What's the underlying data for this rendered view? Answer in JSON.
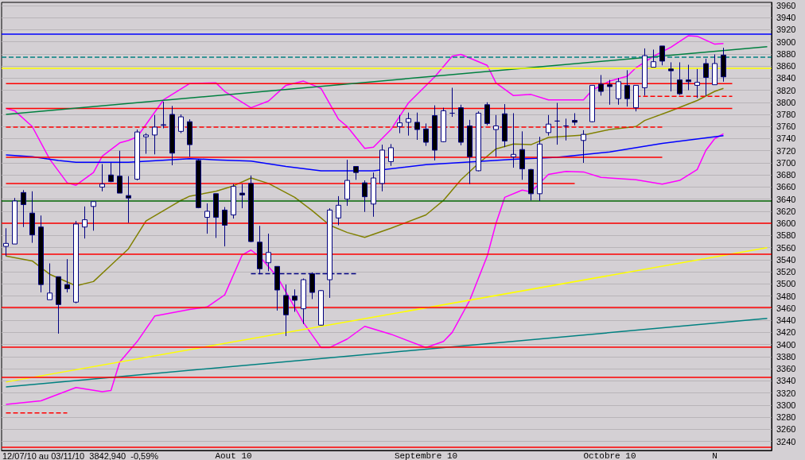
{
  "chart_data": {
    "type": "candlestick",
    "categories": [
      null,
      null,
      null,
      null,
      null,
      null,
      null,
      null,
      null,
      null,
      null,
      null,
      null,
      null,
      null,
      null,
      null,
      null,
      null,
      null,
      null,
      null,
      null,
      null,
      null,
      null,
      "Aout 10",
      null,
      null,
      null,
      null,
      null,
      null,
      null,
      null,
      null,
      null,
      null,
      null,
      null,
      null,
      null,
      null,
      null,
      null,
      null,
      null,
      null,
      "Septembre 10",
      null,
      null,
      null,
      null,
      null,
      null,
      null,
      null,
      null,
      null,
      null,
      null,
      null,
      null,
      null,
      null,
      null,
      null,
      null,
      null,
      "Octobre 10",
      null,
      null,
      null,
      null,
      null,
      null,
      null,
      null,
      null,
      null,
      null,
      "N",
      null,
      null,
      null,
      null,
      null,
      null
    ],
    "ylim": [
      3225,
      3965
    ],
    "yticks": [
      3240,
      3260,
      3280,
      3300,
      3320,
      3340,
      3360,
      3380,
      3400,
      3420,
      3440,
      3460,
      3480,
      3500,
      3520,
      3540,
      3560,
      3580,
      3600,
      3620,
      3640,
      3660,
      3680,
      3700,
      3720,
      3740,
      3760,
      3780,
      3800,
      3820,
      3840,
      3860,
      3880,
      3900,
      3920,
      3940,
      3960
    ],
    "grid": "y",
    "annotations": [
      "12/07/10 au 03/11/10  3842,940  -0,59%"
    ],
    "ref_lines": [
      {
        "axis": "y",
        "value": 3913,
        "color": "#0000ff"
      },
      {
        "axis": "y",
        "value": 3875,
        "color": "#008080",
        "line_style": "dashed"
      },
      {
        "axis": "y",
        "value": 3856,
        "color": "#ffff00"
      },
      {
        "axis": "y",
        "value": 3637,
        "color": "#006400"
      },
      {
        "axis": "y",
        "value": 3600,
        "color": "#ff0000"
      },
      {
        "axis": "y",
        "value": 3549,
        "color": "#ff0000"
      },
      {
        "axis": "y",
        "value": 3462,
        "color": "#ff0000"
      },
      {
        "axis": "y",
        "value": 3396,
        "color": "#ff0000"
      },
      {
        "axis": "y",
        "value": 3346,
        "color": "#ff0000"
      },
      {
        "axis": "y",
        "value": 3231,
        "color": "#ff0000"
      }
    ],
    "series": [
      {
        "type": "line",
        "color": "#ff00ff",
        "values": [
          3790,
          3786,
          null,
          3760,
          null,
          3706,
          null,
          3667,
          3663,
          null,
          3684,
          3711,
          null,
          3733,
          3737,
          3743,
          null,
          null,
          3804,
          null,
          null,
          3831,
          null,
          null,
          3832,
          3818,
          null,
          null,
          3791,
          null,
          3802,
          null,
          3828,
          null,
          3835,
          null,
          3823,
          null,
          3772,
          3760,
          null,
          3724,
          3726,
          null,
          3755,
          null,
          3799,
          null,
          null,
          3842,
          null,
          3876,
          3879,
          null,
          null,
          3861,
          3832,
          null,
          3811,
          null,
          3813,
          null,
          3804,
          null,
          null,
          null,
          3804,
          3820,
          null,
          3835,
          null,
          3843,
          3857,
          null,
          3876,
          null,
          3891,
          null,
          3910,
          3909,
          null,
          3896,
          3897,
          null,
          null,
          null,
          null,
          null
        ]
      },
      {
        "type": "line",
        "color": "#ff00ff",
        "values": [
          3301,
          null,
          null,
          null,
          3307,
          null,
          null,
          null,
          3329,
          null,
          null,
          3322,
          3324,
          3371,
          null,
          3405,
          null,
          3447,
          null,
          null,
          null,
          3458,
          null,
          3462,
          null,
          3482,
          null,
          3548,
          3556,
          3545,
          null,
          3512,
          null,
          null,
          3436,
          null,
          3395,
          3395,
          null,
          3409,
          null,
          3430,
          null,
          null,
          3417,
          null,
          null,
          null,
          3395,
          null,
          3405,
          3420,
          null,
          3473,
          null,
          3546,
          3600,
          3643,
          null,
          3655,
          3652,
          null,
          3681,
          null,
          3686,
          null,
          3685,
          null,
          3676,
          null,
          null,
          null,
          3672,
          null,
          null,
          3665,
          null,
          3671,
          null,
          3689,
          3721,
          3740,
          3748,
          null,
          null,
          null,
          null,
          null
        ]
      },
      {
        "type": "line",
        "color": "#808000",
        "values": [
          3546,
          null,
          null,
          3538,
          null,
          3516,
          null,
          null,
          3497,
          null,
          3504,
          null,
          3531,
          null,
          3558,
          null,
          3604,
          null,
          null,
          null,
          3638,
          3645,
          null,
          null,
          3653,
          null,
          3662,
          null,
          3675,
          null,
          3666,
          null,
          null,
          3643,
          null,
          3621,
          null,
          3597,
          null,
          3585,
          null,
          3577,
          null,
          null,
          3592,
          null,
          null,
          null,
          3614,
          null,
          3638,
          null,
          3672,
          null,
          3699,
          null,
          3723,
          null,
          3731,
          null,
          3730,
          null,
          3742,
          null,
          null,
          null,
          3746,
          null,
          null,
          3755,
          null,
          null,
          3760,
          3770,
          null,
          null,
          3786,
          null,
          null,
          3803,
          null,
          3818,
          3823,
          null,
          null,
          null,
          null,
          null
        ]
      },
      {
        "type": "line",
        "color": "#0000ff",
        "values": [
          3713,
          null,
          null,
          3710,
          null,
          null,
          3704,
          null,
          3701,
          null,
          null,
          null,
          null,
          null,
          3701,
          null,
          null,
          null,
          null,
          null,
          null,
          3707,
          null,
          null,
          3705,
          null,
          null,
          null,
          3703,
          null,
          null,
          null,
          3694,
          null,
          null,
          null,
          3687,
          null,
          null,
          null,
          null,
          null,
          3687,
          null,
          null,
          null,
          null,
          null,
          3697,
          null,
          null,
          null,
          null,
          null,
          null,
          null,
          null,
          null,
          3706,
          null,
          null,
          null,
          null,
          3709,
          null,
          null,
          null,
          null,
          null,
          3718,
          null,
          null,
          null,
          null,
          null,
          3732,
          null,
          null,
          null,
          null,
          null,
          null,
          3745,
          null,
          null,
          null,
          null,
          null
        ]
      },
      {
        "type": "line",
        "color": "#ff0000",
        "values": [
          3831,
          null,
          null,
          null,
          null,
          null,
          null,
          null,
          null,
          null,
          null,
          null,
          null,
          null,
          null,
          null,
          null,
          null,
          null,
          null,
          null,
          null,
          null,
          null,
          null,
          null,
          null,
          null,
          null,
          null,
          null,
          null,
          null,
          null,
          null,
          null,
          null,
          null,
          null,
          null,
          null,
          null,
          null,
          null,
          null,
          null,
          null,
          null,
          null,
          null,
          null,
          null,
          null,
          null,
          null,
          null,
          null,
          null,
          null,
          null,
          null,
          null,
          null,
          null,
          null,
          null,
          null,
          null,
          null,
          null,
          null,
          null,
          null,
          null,
          null,
          null,
          null,
          null,
          null,
          null,
          null,
          null,
          null,
          3831,
          null,
          null,
          null,
          null
        ]
      },
      {
        "type": "line",
        "color": "#ff0000",
        "values": [
          3790,
          null,
          null,
          null,
          null,
          null,
          null,
          null,
          null,
          null,
          null,
          null,
          null,
          null,
          null,
          null,
          null,
          null,
          null,
          null,
          null,
          null,
          null,
          null,
          null,
          null,
          null,
          null,
          null,
          null,
          null,
          null,
          null,
          null,
          null,
          null,
          null,
          null,
          null,
          null,
          null,
          null,
          null,
          null,
          null,
          null,
          null,
          null,
          null,
          null,
          null,
          null,
          null,
          null,
          null,
          null,
          null,
          null,
          null,
          null,
          null,
          null,
          null,
          null,
          null,
          null,
          null,
          null,
          null,
          null,
          null,
          null,
          null,
          null,
          null,
          null,
          null,
          null,
          null,
          null,
          null,
          null,
          null,
          3790,
          null,
          null,
          null,
          null
        ]
      },
      {
        "type": "line",
        "color": "#ff0000",
        "line_style": "dashed",
        "values": [
          null,
          null,
          null,
          null,
          null,
          null,
          null,
          null,
          null,
          null,
          null,
          null,
          null,
          null,
          null,
          null,
          null,
          null,
          null,
          null,
          null,
          null,
          null,
          null,
          null,
          null,
          null,
          null,
          null,
          null,
          null,
          null,
          null,
          null,
          null,
          null,
          null,
          null,
          null,
          null,
          null,
          null,
          null,
          null,
          null,
          null,
          null,
          null,
          null,
          null,
          null,
          null,
          null,
          null,
          null,
          null,
          null,
          null,
          null,
          null,
          null,
          null,
          null,
          null,
          null,
          null,
          null,
          null,
          null,
          null,
          null,
          null,
          3810,
          null,
          null,
          null,
          null,
          null,
          null,
          null,
          null,
          null,
          null,
          3810,
          null,
          null,
          null,
          null
        ]
      },
      {
        "type": "line",
        "color": "#ff0000",
        "line_style": "dashed",
        "values": [
          3759,
          null,
          null,
          null,
          null,
          null,
          null,
          null,
          null,
          null,
          null,
          null,
          null,
          null,
          null,
          null,
          null,
          null,
          null,
          null,
          null,
          null,
          null,
          null,
          null,
          null,
          null,
          null,
          null,
          null,
          null,
          null,
          null,
          null,
          null,
          null,
          null,
          null,
          null,
          null,
          null,
          null,
          null,
          null,
          null,
          null,
          null,
          null,
          null,
          null,
          null,
          null,
          null,
          null,
          null,
          null,
          null,
          null,
          null,
          null,
          null,
          null,
          null,
          null,
          null,
          null,
          null,
          null,
          null,
          null,
          null,
          null,
          null,
          null,
          null,
          3759,
          null,
          null,
          null,
          null,
          null,
          null,
          null,
          null,
          null,
          null,
          null,
          null
        ]
      },
      {
        "type": "line",
        "color": "#ff0000",
        "values": [
          3709,
          null,
          null,
          null,
          null,
          null,
          null,
          null,
          null,
          null,
          null,
          null,
          null,
          null,
          null,
          null,
          null,
          null,
          null,
          null,
          null,
          null,
          null,
          null,
          null,
          null,
          null,
          null,
          null,
          null,
          null,
          null,
          null,
          null,
          null,
          null,
          null,
          null,
          null,
          null,
          null,
          null,
          null,
          null,
          null,
          null,
          null,
          null,
          null,
          null,
          null,
          null,
          null,
          null,
          null,
          null,
          null,
          null,
          null,
          null,
          null,
          null,
          null,
          null,
          null,
          null,
          null,
          null,
          null,
          null,
          null,
          null,
          null,
          null,
          null,
          3709,
          null,
          null,
          null,
          null,
          null,
          null,
          null,
          null,
          null,
          null,
          null,
          null
        ]
      },
      {
        "type": "line",
        "color": "#ff0000",
        "values": [
          3666,
          null,
          null,
          null,
          null,
          null,
          null,
          null,
          null,
          null,
          null,
          null,
          null,
          null,
          null,
          null,
          null,
          null,
          null,
          null,
          null,
          null,
          null,
          null,
          null,
          null,
          null,
          null,
          null,
          null,
          null,
          null,
          null,
          null,
          null,
          null,
          null,
          null,
          null,
          null,
          null,
          null,
          null,
          null,
          null,
          null,
          null,
          null,
          null,
          null,
          null,
          null,
          null,
          null,
          null,
          null,
          null,
          null,
          null,
          null,
          null,
          null,
          null,
          null,
          null,
          3666,
          null,
          null,
          null,
          null,
          null,
          null,
          null,
          null,
          null,
          null,
          null,
          null,
          null,
          null,
          null,
          null,
          null,
          null,
          null,
          null,
          null,
          null
        ]
      },
      {
        "type": "line",
        "color": "#ff0000",
        "line_style": "dashed",
        "values": [
          3287,
          null,
          null,
          null,
          null,
          null,
          null,
          3287,
          null,
          null,
          null,
          null,
          null,
          null,
          null,
          null,
          null,
          null,
          null,
          null,
          null,
          null,
          null,
          null,
          null,
          null,
          null,
          null,
          null,
          null,
          null,
          null,
          null,
          null,
          null,
          null,
          null,
          null,
          null,
          null,
          null,
          null,
          null,
          null,
          null,
          null,
          null,
          null,
          null,
          null,
          null,
          null,
          null,
          null,
          null,
          null,
          null,
          null,
          null,
          null,
          null,
          null,
          null,
          null,
          null,
          null,
          null,
          null,
          null,
          null,
          null,
          null,
          null,
          null,
          null,
          null,
          null,
          null,
          null,
          null,
          null,
          null,
          null,
          null,
          null,
          null,
          null,
          null
        ]
      },
      {
        "type": "line",
        "color": "#000080",
        "line_style": "dashed",
        "values": [
          null,
          null,
          null,
          null,
          null,
          null,
          null,
          null,
          null,
          null,
          null,
          null,
          null,
          null,
          null,
          null,
          null,
          null,
          null,
          null,
          null,
          null,
          null,
          null,
          null,
          null,
          null,
          null,
          3517,
          null,
          null,
          null,
          null,
          null,
          null,
          null,
          null,
          null,
          null,
          null,
          3517,
          null,
          null,
          null,
          null,
          null,
          null,
          null,
          null,
          null,
          null,
          null,
          null,
          null,
          null,
          null,
          null,
          null,
          null,
          null,
          null,
          null,
          null,
          null,
          null,
          null,
          null,
          null,
          null,
          null,
          null,
          null,
          null,
          null,
          null,
          null,
          null,
          null,
          null,
          null,
          null,
          null,
          null,
          null,
          null,
          null,
          null,
          null
        ]
      },
      {
        "type": "line",
        "color": "#008040",
        "values": [
          3780,
          null,
          null,
          null,
          null,
          null,
          null,
          null,
          null,
          null,
          null,
          null,
          null,
          null,
          null,
          null,
          null,
          null,
          null,
          null,
          null,
          null,
          null,
          null,
          null,
          null,
          null,
          null,
          null,
          null,
          null,
          null,
          null,
          null,
          null,
          null,
          null,
          null,
          null,
          null,
          null,
          null,
          null,
          null,
          null,
          null,
          null,
          null,
          null,
          null,
          null,
          null,
          null,
          null,
          null,
          null,
          null,
          null,
          null,
          null,
          null,
          null,
          null,
          null,
          null,
          null,
          null,
          null,
          null,
          null,
          null,
          null,
          null,
          null,
          null,
          null,
          null,
          null,
          null,
          null,
          null,
          null,
          null,
          null,
          null,
          null,
          null,
          3892
        ]
      },
      {
        "type": "line",
        "color": "#008080",
        "values": [
          3330,
          null,
          null,
          null,
          null,
          null,
          null,
          null,
          null,
          null,
          null,
          null,
          null,
          null,
          null,
          null,
          null,
          null,
          null,
          null,
          null,
          null,
          null,
          null,
          null,
          null,
          null,
          null,
          null,
          null,
          null,
          null,
          null,
          null,
          null,
          null,
          null,
          null,
          null,
          null,
          null,
          null,
          null,
          null,
          null,
          null,
          null,
          null,
          null,
          null,
          null,
          null,
          null,
          null,
          null,
          null,
          null,
          null,
          null,
          null,
          null,
          null,
          null,
          null,
          null,
          null,
          null,
          null,
          null,
          null,
          null,
          null,
          null,
          null,
          null,
          null,
          null,
          null,
          null,
          null,
          null,
          null,
          null,
          null,
          null,
          null,
          null,
          3443
        ]
      },
      {
        "type": "line",
        "color": "#ffff00",
        "values": [
          3338,
          null,
          null,
          null,
          null,
          null,
          null,
          null,
          null,
          null,
          null,
          null,
          null,
          null,
          null,
          null,
          null,
          null,
          null,
          null,
          null,
          null,
          null,
          null,
          null,
          null,
          null,
          null,
          null,
          null,
          null,
          null,
          null,
          null,
          null,
          null,
          null,
          null,
          null,
          null,
          null,
          null,
          null,
          null,
          null,
          null,
          null,
          null,
          null,
          null,
          null,
          null,
          null,
          null,
          null,
          null,
          null,
          null,
          null,
          null,
          null,
          null,
          null,
          null,
          null,
          null,
          null,
          null,
          null,
          null,
          null,
          null,
          null,
          null,
          null,
          null,
          null,
          null,
          null,
          null,
          null,
          null,
          null,
          null,
          null,
          null,
          null,
          3560
        ]
      },
      {
        "type": "candlestick",
        "colors": [
          "#ffffff",
          "#ffffff",
          "#000000",
          "#000000",
          "#000000",
          "#ffffff",
          "#000000",
          "#000000",
          "#ffffff",
          "#ffffff",
          "#ffffff",
          "#ffffff",
          "#000000",
          "#000000",
          "#000000",
          "#ffffff",
          "#ffffff",
          "#ffffff",
          "#ffffff",
          "#000000",
          "#ffffff",
          "#000000",
          "#000000",
          "#ffffff",
          "#000000",
          "#000000",
          "#ffffff",
          "#000000",
          "#000000",
          "#000000",
          "#ffffff",
          "#000000",
          "#000000",
          "#000000",
          "#ffffff",
          "#000000",
          "#ffffff",
          "#ffffff",
          "#ffffff",
          "#ffffff",
          "#000000",
          "#000000",
          "#ffffff",
          "#ffffff",
          "#ffffff",
          "#ffffff",
          "#ffffff",
          "#000000",
          "#000000",
          "#000000",
          "#ffffff",
          "#000080",
          "#000000",
          "#000000",
          "#ffffff",
          "#000000",
          "#ffffff",
          "#000000",
          "#ffffff",
          "#000000",
          "#000000",
          "#ffffff",
          "#ffffff",
          "#000080",
          "#000080",
          "#000000",
          "#ffffff",
          "#ffffff",
          "#000000",
          "#000000",
          "#ffffff",
          "#000000",
          "#ffffff",
          "#ffffff",
          "#ffffff",
          "#000000",
          "#000000",
          "#000000",
          "#000000",
          "#ffffff",
          "#000000",
          "#ffffff",
          "#000000",
          null,
          null,
          null,
          null,
          null
        ],
        "ohlc": [
          [
            3562,
            3592,
            3546,
            3567
          ],
          [
            3566,
            3642,
            3566,
            3637
          ],
          [
            3651,
            3655,
            3594,
            3631
          ],
          [
            3617,
            3653,
            3568,
            3581
          ],
          [
            3594,
            3613,
            3486,
            3499
          ],
          [
            3474,
            3534,
            3474,
            3485
          ],
          [
            3512,
            3512,
            3418,
            3466
          ],
          [
            3499,
            3541,
            3486,
            3492
          ],
          [
            3470,
            3604,
            3468,
            3599
          ],
          [
            3594,
            3628,
            3575,
            3606
          ],
          [
            3628,
            3636,
            3588,
            3636
          ],
          [
            3660,
            3698,
            3653,
            3665
          ],
          [
            3680,
            3700,
            3668,
            3669
          ],
          [
            3678,
            3720,
            3650,
            3650
          ],
          [
            3646,
            3678,
            3601,
            3642
          ],
          [
            3673,
            3755,
            3671,
            3751
          ],
          [
            3743,
            3749,
            3715,
            3746
          ],
          [
            3746,
            3779,
            3714,
            3759
          ],
          [
            3762,
            3801,
            3757,
            3763
          ],
          [
            3780,
            3794,
            3696,
            3716
          ],
          [
            3752,
            3780,
            3749,
            3776
          ],
          [
            3768,
            3772,
            3710,
            3730
          ],
          [
            3704,
            3706,
            3625,
            3626
          ],
          [
            3610,
            3633,
            3583,
            3620
          ],
          [
            3649,
            3649,
            3576,
            3610
          ],
          [
            3622,
            3627,
            3562,
            3597
          ],
          [
            3614,
            3665,
            3608,
            3661
          ],
          [
            3650,
            3665,
            3625,
            3647
          ],
          [
            3666,
            3679,
            3569,
            3570
          ],
          [
            3569,
            3596,
            3516,
            3525
          ],
          [
            3535,
            3583,
            3521,
            3552
          ],
          [
            3529,
            3529,
            3456,
            3490
          ],
          [
            3481,
            3499,
            3414,
            3449
          ],
          [
            3480,
            3491,
            3454,
            3473
          ],
          [
            3459,
            3509,
            3434,
            3507
          ],
          [
            3517,
            3519,
            3475,
            3486
          ],
          [
            3432,
            3490,
            3431,
            3489
          ],
          [
            3507,
            3625,
            3477,
            3622
          ],
          [
            3609,
            3645,
            3597,
            3630
          ],
          [
            3640,
            3705,
            3629,
            3671
          ],
          [
            3694,
            3694,
            3672,
            3684
          ],
          [
            3667,
            3671,
            3619,
            3644
          ],
          [
            3632,
            3684,
            3611,
            3675
          ],
          [
            3666,
            3730,
            3653,
            3721
          ],
          [
            3702,
            3731,
            3695,
            3725
          ],
          [
            3760,
            3779,
            3749,
            3766
          ],
          [
            3767,
            3783,
            3745,
            3773
          ],
          [
            3767,
            3783,
            3738,
            3755
          ],
          [
            3756,
            3765,
            3728,
            3734
          ],
          [
            3778,
            3795,
            3704,
            3721
          ],
          [
            3735,
            3791,
            3734,
            3786
          ],
          [
            3782,
            3824,
            3776,
            3782
          ],
          [
            3791,
            3796,
            3729,
            3734
          ],
          [
            3761,
            3771,
            3665,
            3710
          ],
          [
            3687,
            3785,
            3686,
            3782
          ],
          [
            3796,
            3800,
            3762,
            3765
          ],
          [
            3755,
            3779,
            3710,
            3761
          ],
          [
            3781,
            3797,
            3726,
            3736
          ],
          [
            3710,
            3782,
            3692,
            3714
          ],
          [
            3722,
            3752,
            3672,
            3690
          ],
          [
            3689,
            3690,
            3638,
            3649
          ],
          [
            3649,
            3743,
            3637,
            3731
          ],
          [
            3750,
            3779,
            3745,
            3764
          ],
          [
            3769,
            3799,
            3730,
            3769
          ],
          [
            3761,
            3773,
            3737,
            3761
          ],
          [
            3770,
            3782,
            3762,
            3767
          ],
          [
            3737,
            3754,
            3700,
            3747
          ],
          [
            3768,
            3828,
            3767,
            3828
          ],
          [
            3830,
            3845,
            3811,
            3818
          ],
          [
            3829,
            3837,
            3796,
            3826
          ],
          [
            3806,
            3840,
            3796,
            3834
          ],
          [
            3828,
            3853,
            3793,
            3806
          ],
          [
            3791,
            3828,
            3785,
            3828
          ],
          [
            3824,
            3889,
            3811,
            3877
          ],
          [
            3858,
            3887,
            3858,
            3867
          ],
          [
            3893,
            3893,
            3861,
            3868
          ],
          [
            3855,
            3866,
            3818,
            3852
          ],
          [
            3837,
            3866,
            3812,
            3814
          ],
          [
            3837,
            3862,
            3820,
            3834
          ],
          [
            3828,
            3855,
            3807,
            3833
          ],
          [
            3864,
            3872,
            3811,
            3841
          ],
          [
            3829,
            3879,
            3829,
            3864
          ],
          [
            3878,
            3890,
            3834,
            3842
          ],
          null,
          null,
          null,
          null,
          null
        ]
      }
    ]
  }
}
